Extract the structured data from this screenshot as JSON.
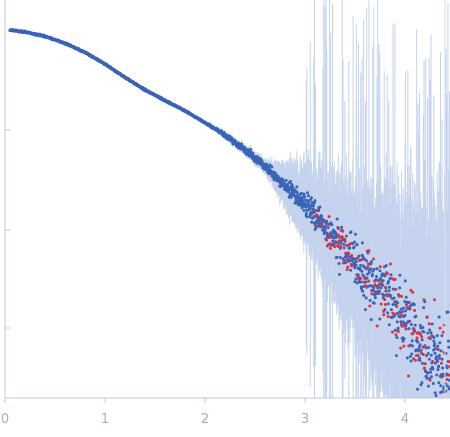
{
  "chart_data": {
    "type": "scatter",
    "title": "",
    "xlabel": "",
    "ylabel": "",
    "xlim": [
      0,
      4.45
    ],
    "log_y": true,
    "grid": false,
    "legend": "none",
    "x_ticks": [
      {
        "value": 0,
        "label": "0"
      },
      {
        "value": 1,
        "label": "1"
      },
      {
        "value": 2,
        "label": "2"
      },
      {
        "value": 3,
        "label": "3"
      },
      {
        "value": 4,
        "label": "4"
      }
    ],
    "y_tick_count": 3,
    "colors": {
      "points": "#3a64b8",
      "negative_points": "#d9343f",
      "error_bars": "#c5d3ee",
      "axis": "#b8c7e3",
      "tick_label": "#9db0cf"
    },
    "series": [
      {
        "kind": "experimental-points",
        "profile": [
          [
            0.05,
            1.0
          ],
          [
            0.2,
            0.975
          ],
          [
            0.4,
            0.92
          ],
          [
            0.6,
            0.84
          ],
          [
            0.8,
            0.745
          ],
          [
            1.0,
            0.64
          ],
          [
            1.2,
            0.535
          ],
          [
            1.4,
            0.455
          ],
          [
            1.6,
            0.395
          ],
          [
            1.8,
            0.345
          ],
          [
            2.0,
            0.295
          ],
          [
            2.2,
            0.25
          ],
          [
            2.4,
            0.205
          ],
          [
            2.6,
            0.165
          ],
          [
            2.8,
            0.13
          ],
          [
            3.0,
            0.1
          ],
          [
            3.2,
            0.075
          ],
          [
            3.4,
            0.055
          ],
          [
            3.6,
            0.04
          ],
          [
            3.8,
            0.03
          ],
          [
            4.0,
            0.022
          ],
          [
            4.2,
            0.015
          ],
          [
            4.45,
            0.01
          ]
        ]
      }
    ]
  }
}
